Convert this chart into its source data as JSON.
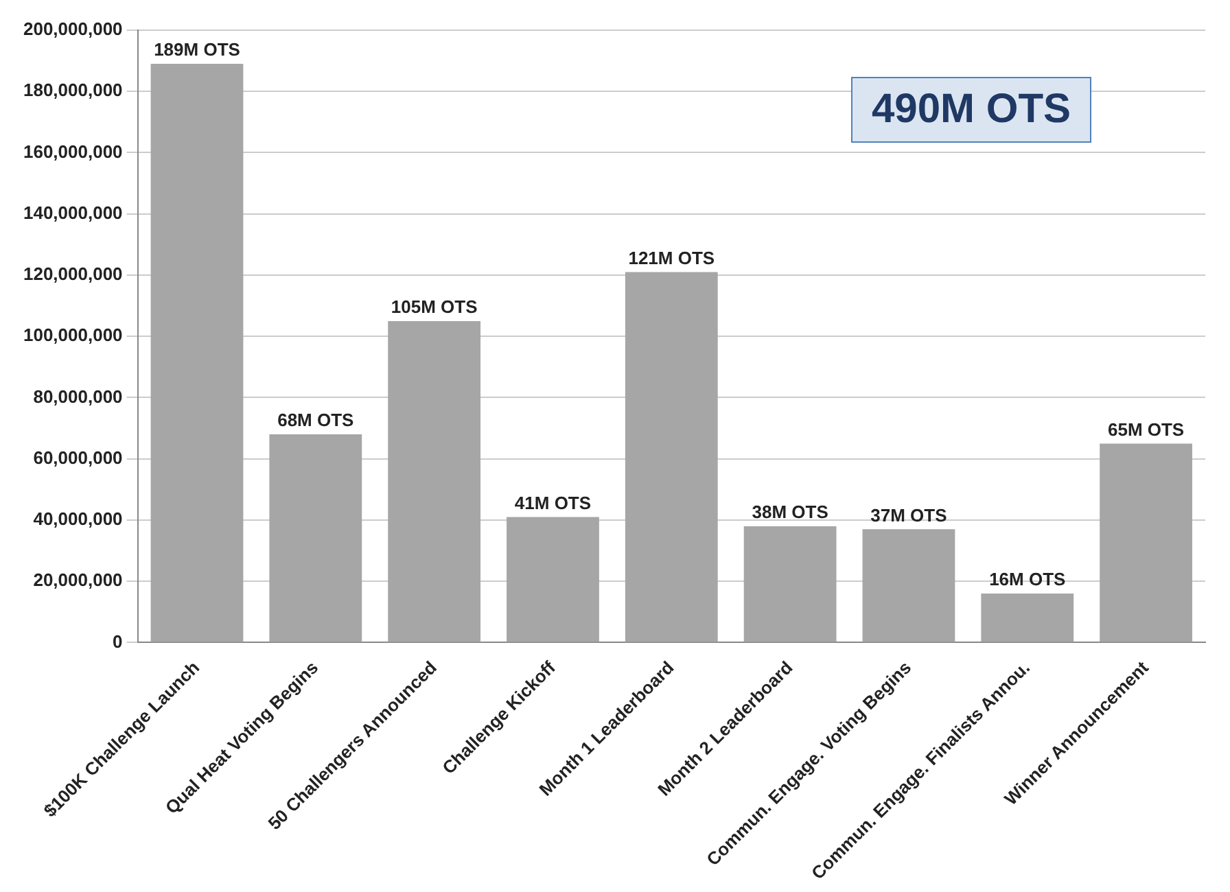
{
  "chart_data": {
    "type": "bar",
    "categories": [
      "$100K Challenge Launch",
      "Qual Heat Voting Begins",
      "50 Challengers Announced",
      "Challenge Kickoff",
      "Month 1 Leaderboard",
      "Month 2 Leaderboard",
      "Commun. Engage. Voting Begins",
      "Commun. Engage. Finalists Annou.",
      "Winner Announcement"
    ],
    "values": [
      189000000,
      68000000,
      105000000,
      41000000,
      121000000,
      38000000,
      37000000,
      16000000,
      65000000
    ],
    "value_labels": [
      "189M OTS",
      "68M OTS",
      "105M OTS",
      "41M OTS",
      "121M OTS",
      "38M OTS",
      "37M OTS",
      "16M OTS",
      "65M OTS"
    ],
    "color": "#a6a6a6",
    "ylim": [
      0,
      200000000
    ],
    "yticks": [
      0,
      {
        "value": 20000000,
        "label": "20,000,000"
      },
      {
        "value": 40000000,
        "label": "40,000,000"
      },
      {
        "value": 60000000,
        "label": "60,000,000"
      },
      {
        "value": 80000000,
        "label": "80,000,000"
      },
      {
        "value": 100000000,
        "label": "100,000,000"
      },
      {
        "value": 120000000,
        "label": "120,000,000"
      },
      {
        "value": 140000000,
        "label": "140,000,000"
      },
      {
        "value": 160000000,
        "label": "160,000,000"
      },
      {
        "value": 180000000,
        "label": "180,000,000"
      },
      {
        "value": 200000000,
        "label": "200,000,000"
      }
    ],
    "grid": "y",
    "annotations": [
      "490M OTS"
    ]
  }
}
